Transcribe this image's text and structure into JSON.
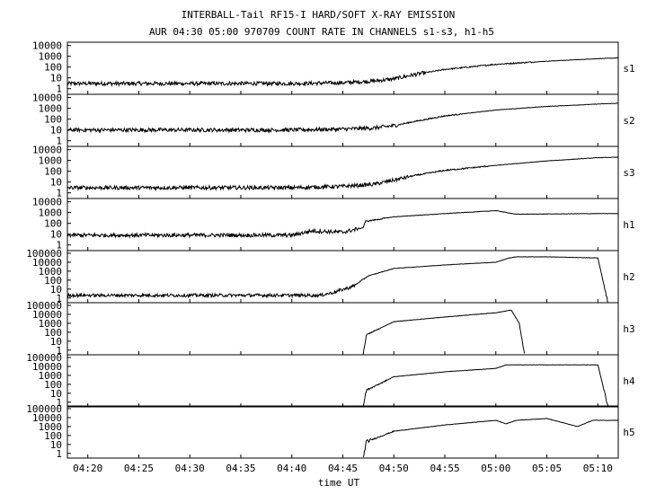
{
  "title_line1": "INTERBALL-Tail RF15-I HARD/SOFT X-RAY EMISSION",
  "title_line2": "AUR 04:30 05:00 970709  COUNT RATE IN CHANNELS s1-s3, h1-h5",
  "chart_data": {
    "type": "line",
    "xlabel": "time UT",
    "x_ticks": [
      "04:20",
      "04:25",
      "04:30",
      "04:35",
      "04:40",
      "04:45",
      "04:50",
      "04:55",
      "05:00",
      "05:05",
      "05:10"
    ],
    "x_tick_minutes": [
      260,
      265,
      270,
      275,
      280,
      285,
      290,
      295,
      300,
      305,
      310
    ],
    "xlim_minutes": [
      258,
      312
    ],
    "y_scale": "log",
    "panels": [
      {
        "name": "s1",
        "y_ticks": [
          "10000",
          "1000",
          "100",
          "10",
          "1"
        ],
        "ylim": [
          0.3,
          20000
        ]
      },
      {
        "name": "s2",
        "y_ticks": [
          "10000",
          "1000",
          "100",
          "10",
          "1"
        ],
        "ylim": [
          0.3,
          20000
        ]
      },
      {
        "name": "s3",
        "y_ticks": [
          "10000",
          "1000",
          "100",
          "10",
          "1"
        ],
        "ylim": [
          0.3,
          20000
        ]
      },
      {
        "name": "h1",
        "y_ticks": [
          "10000",
          "1000",
          "100",
          "10",
          "1"
        ],
        "ylim": [
          0.3,
          20000
        ]
      },
      {
        "name": "h2",
        "y_ticks": [
          "100000",
          "10000",
          "1000",
          "100",
          "10",
          "1"
        ],
        "ylim": [
          0.3,
          200000
        ]
      },
      {
        "name": "h3",
        "y_ticks": [
          "100000",
          "10000",
          "1000",
          "100",
          "10",
          "1"
        ],
        "ylim": [
          0.3,
          200000
        ]
      },
      {
        "name": "h4",
        "y_ticks": [
          "100000",
          "10000",
          "1000",
          "100",
          "10",
          "1"
        ],
        "ylim": [
          0.3,
          200000
        ]
      },
      {
        "name": "h5",
        "y_ticks": [
          "100000",
          "10000",
          "1000",
          "100",
          "10",
          "1"
        ],
        "ylim": [
          0.3,
          200000
        ]
      }
    ],
    "series": [
      {
        "name": "s1",
        "x": [
          258,
          270,
          280,
          285,
          288,
          290,
          292,
          295,
          300,
          305,
          310,
          312
        ],
        "y": [
          3,
          3,
          3,
          3.5,
          5,
          8,
          20,
          60,
          180,
          350,
          600,
          700
        ]
      },
      {
        "name": "s2",
        "x": [
          258,
          270,
          280,
          285,
          288,
          290,
          292,
          295,
          300,
          305,
          310,
          312
        ],
        "y": [
          10,
          10,
          10,
          12,
          15,
          25,
          60,
          200,
          700,
          1500,
          2500,
          3000
        ]
      },
      {
        "name": "s3",
        "x": [
          258,
          270,
          280,
          285,
          288,
          290,
          292,
          295,
          300,
          305,
          310,
          312
        ],
        "y": [
          3,
          3,
          3,
          4,
          6,
          15,
          40,
          120,
          350,
          900,
          1800,
          2000
        ]
      },
      {
        "name": "h1",
        "x": [
          258,
          270,
          280,
          282,
          285,
          287,
          287.2,
          290,
          295,
          300,
          302,
          310,
          312
        ],
        "y": [
          8,
          8,
          8,
          20,
          15,
          40,
          150,
          400,
          800,
          1500,
          700,
          800,
          800
        ]
      },
      {
        "name": "h2",
        "x": [
          258,
          273,
          281.8,
          282.8,
          284,
          286,
          287.5,
          290,
          295,
          300,
          301.3,
          302,
          305,
          310,
          311
        ],
        "y": [
          2,
          2,
          2,
          2,
          4,
          20,
          300,
          2000,
          5000,
          10000,
          30000,
          40000,
          40000,
          30000,
          0.3
        ]
      },
      {
        "name": "h3",
        "x": [
          287,
          287.3,
          290,
          295,
          300,
          301.5,
          302.3,
          302.8
        ],
        "y": [
          0.3,
          50,
          1500,
          5000,
          15000,
          30000,
          1000,
          0.3
        ]
      },
      {
        "name": "h4",
        "x": [
          287,
          287.3,
          290,
          295,
          300,
          301,
          302,
          305,
          310,
          311
        ],
        "y": [
          0.3,
          20,
          700,
          2500,
          6000,
          15000,
          15000,
          15000,
          15000,
          0.3
        ]
      },
      {
        "name": "h5",
        "x": [
          287,
          287.3,
          290,
          295,
          300,
          301,
          302,
          305,
          308,
          309.5,
          312
        ],
        "y": [
          0.3,
          20,
          300,
          1500,
          5000,
          2000,
          5000,
          8000,
          1000,
          5000,
          5000
        ]
      }
    ]
  }
}
